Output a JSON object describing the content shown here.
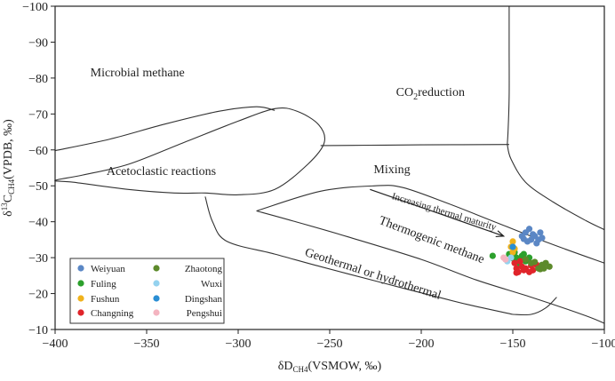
{
  "chart_data": {
    "type": "scatter",
    "title": "",
    "xlabel": "δD",
    "xlabel_sub": "CH4",
    "xlabel_suffix": "(VSMOW, ‰)",
    "ylabel": "δ",
    "ylabel_sup": "13",
    "ylabel_mid": "C",
    "ylabel_sub": "CH4",
    "ylabel_suffix": "(VPDB, ‰)",
    "xlim": [
      -400,
      -100
    ],
    "ylim": [
      -100,
      -10
    ],
    "y_inverted": true,
    "xticks": [
      -400,
      -350,
      -300,
      -250,
      -200,
      -150,
      -100
    ],
    "xtick_labels": [
      "−400",
      "−350",
      "−300",
      "−250",
      "−200",
      "−150",
      "−100"
    ],
    "yticks": [
      -100,
      -90,
      -80,
      -70,
      -60,
      -50,
      -40,
      -30,
      -20,
      -10
    ],
    "ytick_labels": [
      "−100",
      "−90",
      "−80",
      "−70",
      "−60",
      "−50",
      "−40",
      "−30",
      "−20",
      "−10"
    ],
    "grid": false,
    "legend_position": "bottom-left",
    "regions": [
      {
        "label": "Microbial methane",
        "x": -355,
        "y": -80.5
      },
      {
        "label_main": "CO",
        "label_sub": "2",
        "label_rest": "reduction",
        "x": -195,
        "y": -75
      },
      {
        "label": "Acetoclastic reactions",
        "x": -342,
        "y": -53
      },
      {
        "label": "Mixing",
        "x": -216,
        "y": -53.5
      },
      {
        "label": "Increasing thermal maturity",
        "x": -188,
        "y": -42,
        "rotate": 17,
        "small": true
      },
      {
        "label": "Thermogenic methane",
        "x": -195,
        "y": -34,
        "rotate": 21
      },
      {
        "label": "Geothermal or hydrothermal",
        "x": -227,
        "y": -24.5,
        "rotate": 18
      }
    ],
    "boundaries": [
      {
        "name": "upper-curve",
        "closed": false,
        "points": [
          [
            -400,
            -59.8
          ],
          [
            -370,
            -63
          ],
          [
            -340,
            -67.2
          ],
          [
            -310,
            -70.8
          ],
          [
            -290,
            -72
          ],
          [
            -280,
            -71
          ]
        ]
      },
      {
        "name": "horizontal-step",
        "closed": false,
        "points": [
          [
            -255,
            -61.2
          ],
          [
            -228,
            -61.3
          ],
          [
            -200,
            -61.4
          ],
          [
            -152,
            -61.5
          ]
        ]
      },
      {
        "name": "vertical-curve",
        "closed": false,
        "points": [
          [
            -152,
            -100
          ],
          [
            -152,
            -88
          ],
          [
            -152,
            -75
          ],
          [
            -152.5,
            -66
          ],
          [
            -153,
            -61.5
          ]
        ]
      },
      {
        "name": "right-curve",
        "closed": false,
        "points": [
          [
            -153,
            -61.5
          ],
          [
            -151,
            -57.5
          ],
          [
            -143,
            -51
          ],
          [
            -128,
            -45.5
          ],
          [
            -110,
            -40.3
          ],
          [
            -100,
            -37.8
          ]
        ]
      },
      {
        "name": "acetoclastic-ellipse",
        "closed": true,
        "points": [
          [
            -318,
            -48
          ],
          [
            -300,
            -47.5
          ],
          [
            -280,
            -49
          ],
          [
            -262,
            -56
          ],
          [
            -253,
            -62
          ],
          [
            -256,
            -67
          ],
          [
            -268,
            -70.8
          ],
          [
            -280,
            -71.5
          ],
          [
            -300,
            -68
          ],
          [
            -330,
            -62
          ],
          [
            -360,
            -56
          ],
          [
            -385,
            -53
          ],
          [
            -400,
            -51.5
          ],
          [
            -390,
            -51
          ],
          [
            -360,
            -49
          ],
          [
            -335,
            -48
          ]
        ]
      },
      {
        "name": "thermogenic-upper",
        "closed": false,
        "points": [
          [
            -290,
            -43
          ],
          [
            -255,
            -48.5
          ],
          [
            -225,
            -50
          ],
          [
            -210,
            -49.5
          ],
          [
            -185,
            -45
          ],
          [
            -160,
            -40
          ],
          [
            -130,
            -34
          ],
          [
            -100,
            -28.5
          ]
        ]
      },
      {
        "name": "thermogenic-lower-left",
        "closed": false,
        "points": [
          [
            -318,
            -47
          ],
          [
            -314,
            -40
          ],
          [
            -306,
            -34.5
          ],
          [
            -280,
            -31
          ],
          [
            -255,
            -27.5
          ],
          [
            -225,
            -23.5
          ],
          [
            -200,
            -20.2
          ],
          [
            -175,
            -17
          ],
          [
            -150,
            -14.2
          ]
        ]
      },
      {
        "name": "thermogenic-lower",
        "closed": false,
        "points": [
          [
            -290,
            -43
          ],
          [
            -270,
            -40.2
          ],
          [
            -240,
            -35.8
          ],
          [
            -200,
            -29.5
          ],
          [
            -170,
            -23.8
          ],
          [
            -140,
            -19
          ],
          [
            -110,
            -13.8
          ],
          [
            -100,
            -11.7
          ]
        ]
      },
      {
        "name": "hydrothermal-bottom",
        "closed": false,
        "points": [
          [
            -150,
            -14.2
          ],
          [
            -140,
            -14.2
          ],
          [
            -132,
            -16
          ],
          [
            -126,
            -19
          ]
        ]
      }
    ],
    "arrow": {
      "from": [
        -228,
        -49
      ],
      "to": [
        -155,
        -36
      ]
    },
    "series": [
      {
        "name": "Weiyuan",
        "color": "#5b87c5",
        "points": [
          [
            -143,
            -37
          ],
          [
            -141,
            -38
          ],
          [
            -138,
            -36
          ],
          [
            -136,
            -35
          ],
          [
            -134,
            -35.5
          ],
          [
            -140,
            -35
          ],
          [
            -145,
            -36
          ],
          [
            -142,
            -34.5
          ],
          [
            -137,
            -34
          ],
          [
            -139,
            -36.5
          ],
          [
            -135,
            -37
          ],
          [
            -144,
            -35.2
          ]
        ]
      },
      {
        "name": "Fuling",
        "color": "#2ca02c",
        "points": [
          [
            -161,
            -30.5
          ],
          [
            -152,
            -31
          ],
          [
            -149,
            -31.5
          ],
          [
            -147,
            -29.5
          ],
          [
            -145,
            -30.5
          ],
          [
            -143,
            -29
          ],
          [
            -141,
            -30
          ],
          [
            -146,
            -28
          ],
          [
            -148,
            -30
          ],
          [
            -144,
            -31
          ],
          [
            -150,
            -29.8
          ]
        ]
      },
      {
        "name": "Fushun",
        "color": "#f0b21c",
        "points": [
          [
            -150,
            -34.5
          ],
          [
            -151,
            -33
          ],
          [
            -150,
            -31.5
          ],
          [
            -149,
            -32.5
          ]
        ]
      },
      {
        "name": "Changning",
        "color": "#e0242a",
        "points": [
          [
            -149,
            -28.5
          ],
          [
            -148,
            -27
          ],
          [
            -147,
            -26
          ],
          [
            -145,
            -27.5
          ],
          [
            -143,
            -27
          ],
          [
            -141,
            -26
          ],
          [
            -139,
            -26.5
          ],
          [
            -137,
            -28
          ],
          [
            -146,
            -29
          ],
          [
            -144,
            -26.5
          ],
          [
            -148,
            -25.8
          ],
          [
            -140,
            -27.8
          ]
        ]
      },
      {
        "name": "Zhaotong",
        "color": "#5d8a2b",
        "points": [
          [
            -143,
            -29.5
          ],
          [
            -140,
            -28.5
          ],
          [
            -136,
            -27
          ],
          [
            -134,
            -28
          ],
          [
            -132,
            -28.5
          ],
          [
            -130,
            -27.5
          ],
          [
            -135,
            -26.8
          ],
          [
            -138,
            -28.8
          ],
          [
            -133,
            -27
          ]
        ]
      },
      {
        "name": "Wuxi",
        "color": "#94d2ef",
        "points": [
          [
            -151,
            -30
          ],
          [
            -153,
            -29
          ]
        ]
      },
      {
        "name": "Dingshan",
        "color": "#2a8ed4",
        "points": [
          [
            -150,
            -33
          ]
        ]
      },
      {
        "name": "Pengshui",
        "color": "#f4b4c0",
        "points": [
          [
            -155,
            -30
          ],
          [
            -154,
            -29.5
          ]
        ]
      }
    ],
    "legend_rows": [
      [
        "Weiyuan",
        "Zhaotong"
      ],
      [
        "Fuling",
        "Wuxi"
      ],
      [
        "Fushun",
        "Dingshan"
      ],
      [
        "Changning",
        "Pengshui"
      ]
    ]
  }
}
